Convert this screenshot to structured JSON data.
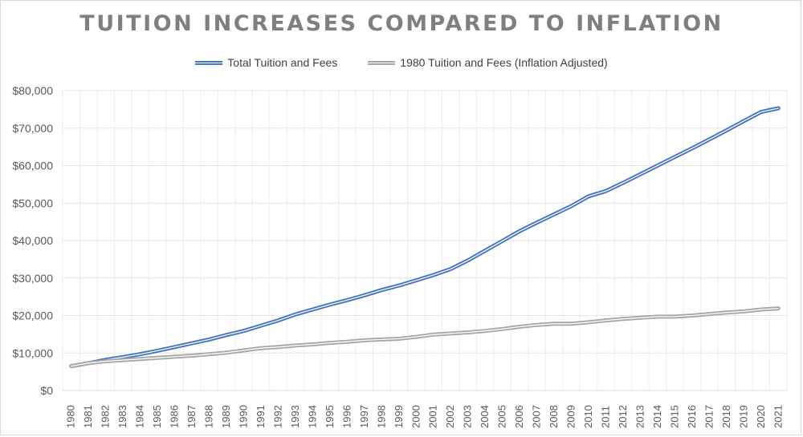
{
  "chart_data": {
    "type": "line",
    "title": "TUITION INCREASES COMPARED TO INFLATION",
    "xlabel": "",
    "ylabel": "",
    "ylim": [
      0,
      80000
    ],
    "yticks": [
      0,
      10000,
      20000,
      30000,
      40000,
      50000,
      60000,
      70000,
      80000
    ],
    "ytick_labels": [
      "$0",
      "$10,000",
      "$20,000",
      "$30,000",
      "$40,000",
      "$50,000",
      "$60,000",
      "$70,000",
      "$80,000"
    ],
    "grid": true,
    "legend_position": "top",
    "x": [
      "1980",
      "1981",
      "1982",
      "1983",
      "1984",
      "1985",
      "1986",
      "1987",
      "1988",
      "1989",
      "1990",
      "1991",
      "1992",
      "1993",
      "1994",
      "1995",
      "1996",
      "1997",
      "1998",
      "1999",
      "2000",
      "2001",
      "2002",
      "2003",
      "2004",
      "2005",
      "2006",
      "2007",
      "2008",
      "2009",
      "2010",
      "2011",
      "2012",
      "2013",
      "2014",
      "2015",
      "2016",
      "2017",
      "2018",
      "2019",
      "2020",
      "2021"
    ],
    "series": [
      {
        "name": "Total Tuition and Fees",
        "color": "#4472c4",
        "values": [
          6500,
          7300,
          8200,
          8900,
          9700,
          10600,
          11600,
          12600,
          13600,
          14800,
          15900,
          17300,
          18700,
          20300,
          21600,
          22900,
          24100,
          25400,
          26800,
          28000,
          29400,
          30800,
          32400,
          34700,
          37300,
          39900,
          42500,
          44800,
          47000,
          49200,
          51800,
          53200,
          55400,
          57700,
          60000,
          62300,
          64600,
          67000,
          69400,
          71900,
          74300,
          75300
        ]
      },
      {
        "name": "1980 Tuition and Fees (Inflation Adjusted)",
        "color": "#a6a6a6",
        "values": [
          6500,
          7300,
          7800,
          8100,
          8400,
          8700,
          9000,
          9300,
          9700,
          10100,
          10700,
          11300,
          11600,
          12000,
          12300,
          12700,
          13000,
          13400,
          13600,
          13800,
          14300,
          14900,
          15200,
          15500,
          15900,
          16400,
          17000,
          17500,
          17800,
          17800,
          18200,
          18700,
          19100,
          19400,
          19700,
          19700,
          20000,
          20400,
          20800,
          21100,
          21600,
          21900
        ]
      }
    ]
  }
}
